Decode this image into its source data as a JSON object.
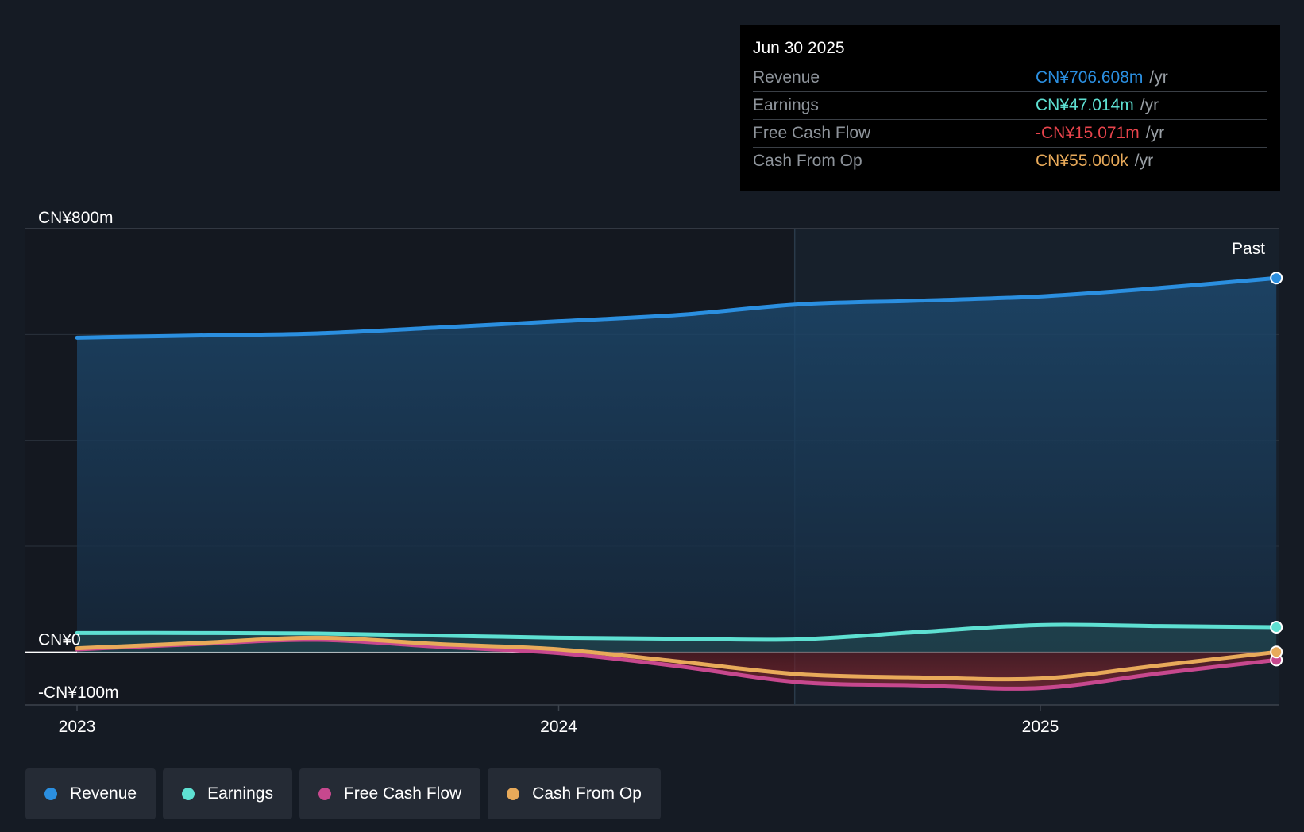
{
  "tooltip": {
    "date": "Jun 30 2025",
    "rows": [
      {
        "label": "Revenue",
        "value": "CN¥706.608m",
        "unit": "/yr",
        "color": "#2b8fe0"
      },
      {
        "label": "Earnings",
        "value": "CN¥47.014m",
        "unit": "/yr",
        "color": "#5ee0d2"
      },
      {
        "label": "Free Cash Flow",
        "value": "-CN¥15.071m",
        "unit": "/yr",
        "color": "#e8444c"
      },
      {
        "label": "Cash From Op",
        "value": "CN¥55.000k",
        "unit": "/yr",
        "color": "#e8aa5a"
      }
    ]
  },
  "legend": [
    {
      "label": "Revenue",
      "color": "#2b8fe0"
    },
    {
      "label": "Earnings",
      "color": "#5ee0d2"
    },
    {
      "label": "Free Cash Flow",
      "color": "#c7488e"
    },
    {
      "label": "Cash From Op",
      "color": "#e8aa5a"
    }
  ],
  "chart_data": {
    "type": "line",
    "title": "",
    "xlabel": "",
    "ylabel": "",
    "x_range": [
      2022.9,
      2025.5
    ],
    "ylim": [
      -100,
      800
    ],
    "y_tick_labels": [
      {
        "value": 800,
        "label": "CN¥800m"
      },
      {
        "value": 0,
        "label": "CN¥0"
      },
      {
        "value": -100,
        "label": "-CN¥100m"
      }
    ],
    "x_ticks": [
      {
        "value": 2023,
        "label": "2023"
      },
      {
        "value": 2024,
        "label": "2024"
      },
      {
        "value": 2025,
        "label": "2025"
      }
    ],
    "grid_y_values": [
      600,
      400,
      200
    ],
    "forecast_divider_x": 2024.49,
    "past_label": "Past",
    "series": [
      {
        "name": "Revenue",
        "color": "#2b8fe0",
        "x": [
          2023.0,
          2023.25,
          2023.5,
          2023.75,
          2024.0,
          2024.25,
          2024.5,
          2024.75,
          2025.0,
          2025.25,
          2025.49
        ],
        "y": [
          594,
          598,
          602,
          613,
          625,
          637,
          657,
          664,
          672,
          688,
          706.6
        ]
      },
      {
        "name": "Earnings",
        "color": "#5ee0d2",
        "x": [
          2023.0,
          2023.25,
          2023.5,
          2023.75,
          2024.0,
          2024.25,
          2024.5,
          2024.75,
          2025.0,
          2025.25,
          2025.49
        ],
        "y": [
          36,
          36,
          35,
          31,
          27,
          25,
          24,
          38,
          51,
          49,
          47.0
        ]
      },
      {
        "name": "Free Cash Flow",
        "color": "#c7488e",
        "x": [
          2023.0,
          2023.25,
          2023.5,
          2023.75,
          2024.0,
          2024.25,
          2024.5,
          2024.75,
          2025.0,
          2025.25,
          2025.49
        ],
        "y": [
          5,
          15,
          23,
          10,
          -2,
          -27,
          -57,
          -63,
          -68,
          -40,
          -15.1
        ]
      },
      {
        "name": "Cash From Op",
        "color": "#e8aa5a",
        "x": [
          2023.0,
          2023.25,
          2023.5,
          2023.75,
          2024.0,
          2024.25,
          2024.5,
          2024.75,
          2025.0,
          2025.25,
          2025.49
        ],
        "y": [
          7,
          17,
          27,
          15,
          5,
          -18,
          -42,
          -48,
          -50,
          -25,
          0.055
        ]
      }
    ]
  }
}
